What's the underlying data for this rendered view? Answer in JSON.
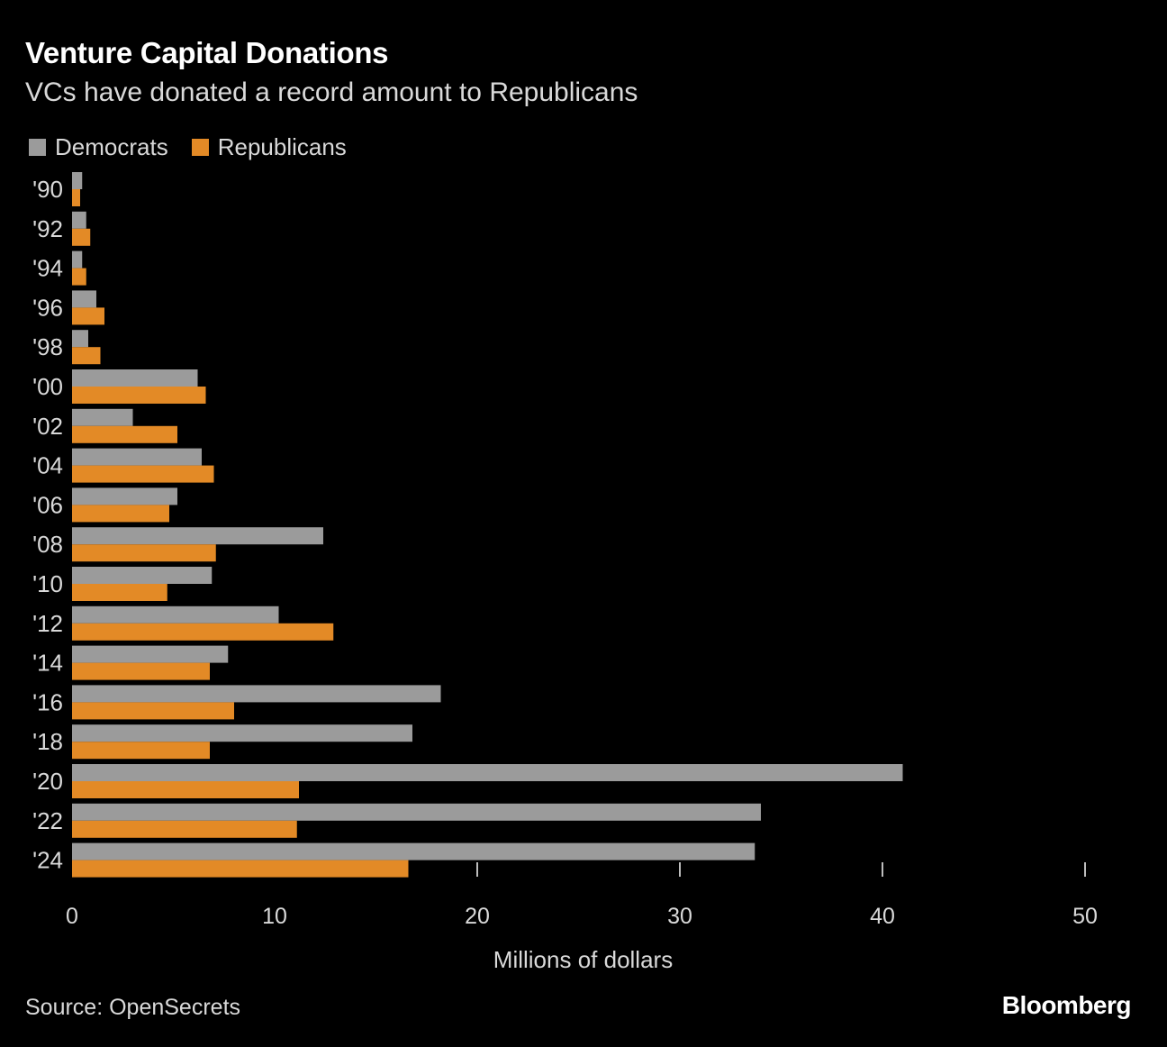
{
  "colors": {
    "democrats": "#9b9b9b",
    "republicans": "#e38a26",
    "background": "#000000"
  },
  "chart_data": {
    "type": "bar",
    "orientation": "horizontal",
    "title": "Venture Capital Donations",
    "subtitle": "VCs have donated a record amount to Republicans",
    "xlabel": "Millions of dollars",
    "ylabel": "",
    "xlim": [
      0,
      50
    ],
    "xticks": [
      0,
      10,
      20,
      30,
      40,
      50
    ],
    "categories": [
      "'90",
      "'92",
      "'94",
      "'96",
      "'98",
      "'00",
      "'02",
      "'04",
      "'06",
      "'08",
      "'10",
      "'12",
      "'14",
      "'16",
      "'18",
      "'20",
      "'22",
      "'24"
    ],
    "series": [
      {
        "name": "Democrats",
        "values": [
          0.5,
          0.7,
          0.5,
          1.2,
          0.8,
          6.2,
          3.0,
          6.4,
          5.2,
          12.4,
          6.9,
          10.2,
          7.7,
          18.2,
          16.8,
          41.0,
          34.0,
          33.7
        ]
      },
      {
        "name": "Republicans",
        "values": [
          0.4,
          0.9,
          0.7,
          1.6,
          1.4,
          6.6,
          5.2,
          7.0,
          4.8,
          7.1,
          4.7,
          12.9,
          6.8,
          8.0,
          6.8,
          11.2,
          11.1,
          16.6
        ]
      }
    ],
    "legend": "top-left",
    "grid": false,
    "source": "Source: OpenSecrets"
  },
  "brand": "Bloomberg"
}
